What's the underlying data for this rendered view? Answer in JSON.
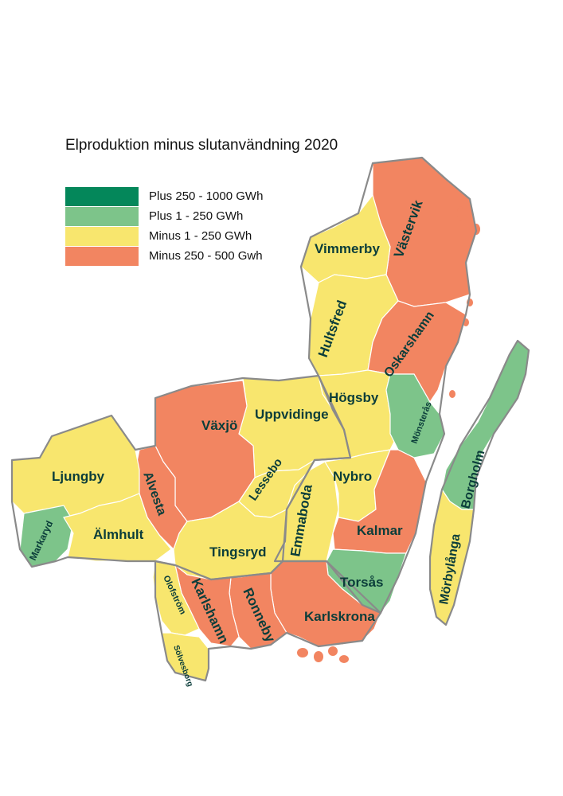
{
  "title": "Elproduktion minus slutanvändning 2020",
  "colors": {
    "plus_high": "#04875a",
    "plus_low": "#7dc48a",
    "minus_low": "#f8e66e",
    "minus_high": "#f28561"
  },
  "legend": [
    {
      "label": "Plus 250 - 1000 GWh",
      "color": "#04875a"
    },
    {
      "label": "Plus 1 - 250 GWh",
      "color": "#7dc48a"
    },
    {
      "label": "Minus 1 - 250 GWh",
      "color": "#f8e66e"
    },
    {
      "label": "Minus 250 - 500 Gwh",
      "color": "#f28561"
    }
  ],
  "municipalities": [
    {
      "name": "Vimmerby",
      "category": "Minus 1 - 250 GWh"
    },
    {
      "name": "Västervik",
      "category": "Minus 250 - 500 Gwh"
    },
    {
      "name": "Hultsfred",
      "category": "Minus 1 - 250 GWh"
    },
    {
      "name": "Oskarshamn",
      "category": "Minus 250 - 500 Gwh"
    },
    {
      "name": "Högsby",
      "category": "Minus 1 - 250 GWh"
    },
    {
      "name": "Mönsterås",
      "category": "Plus 1 - 250 GWh"
    },
    {
      "name": "Uppvidinge",
      "category": "Minus 1 - 250 GWh"
    },
    {
      "name": "Växjö",
      "category": "Minus 250 - 500 Gwh"
    },
    {
      "name": "Ljungby",
      "category": "Minus 1 - 250 GWh"
    },
    {
      "name": "Alvesta",
      "category": "Minus 250 - 500 Gwh"
    },
    {
      "name": "Lessebo",
      "category": "Minus 1 - 250 GWh"
    },
    {
      "name": "Nybro",
      "category": "Minus 1 - 250 GWh"
    },
    {
      "name": "Borgholm",
      "category": "Plus 1 - 250 GWh"
    },
    {
      "name": "Markaryd",
      "category": "Plus 1 - 250 GWh"
    },
    {
      "name": "Älmhult",
      "category": "Minus 1 - 250 GWh"
    },
    {
      "name": "Emmaboda",
      "category": "Minus 1 - 250 GWh"
    },
    {
      "name": "Kalmar",
      "category": "Minus 250 - 500 Gwh"
    },
    {
      "name": "Tingsryd",
      "category": "Minus 1 - 250 GWh"
    },
    {
      "name": "Mörbylånga",
      "category": "Minus 1 - 250 GWh"
    },
    {
      "name": "Torsås",
      "category": "Plus 1 - 250 GWh"
    },
    {
      "name": "Olofström",
      "category": "Minus 1 - 250 GWh"
    },
    {
      "name": "Karlshamn",
      "category": "Minus 250 - 500 Gwh"
    },
    {
      "name": "Ronneby",
      "category": "Minus 250 - 500 Gwh"
    },
    {
      "name": "Karlskrona",
      "category": "Minus 250 - 500 Gwh"
    },
    {
      "name": "Sölvesborg",
      "category": "Minus 1 - 250 GWh"
    }
  ]
}
